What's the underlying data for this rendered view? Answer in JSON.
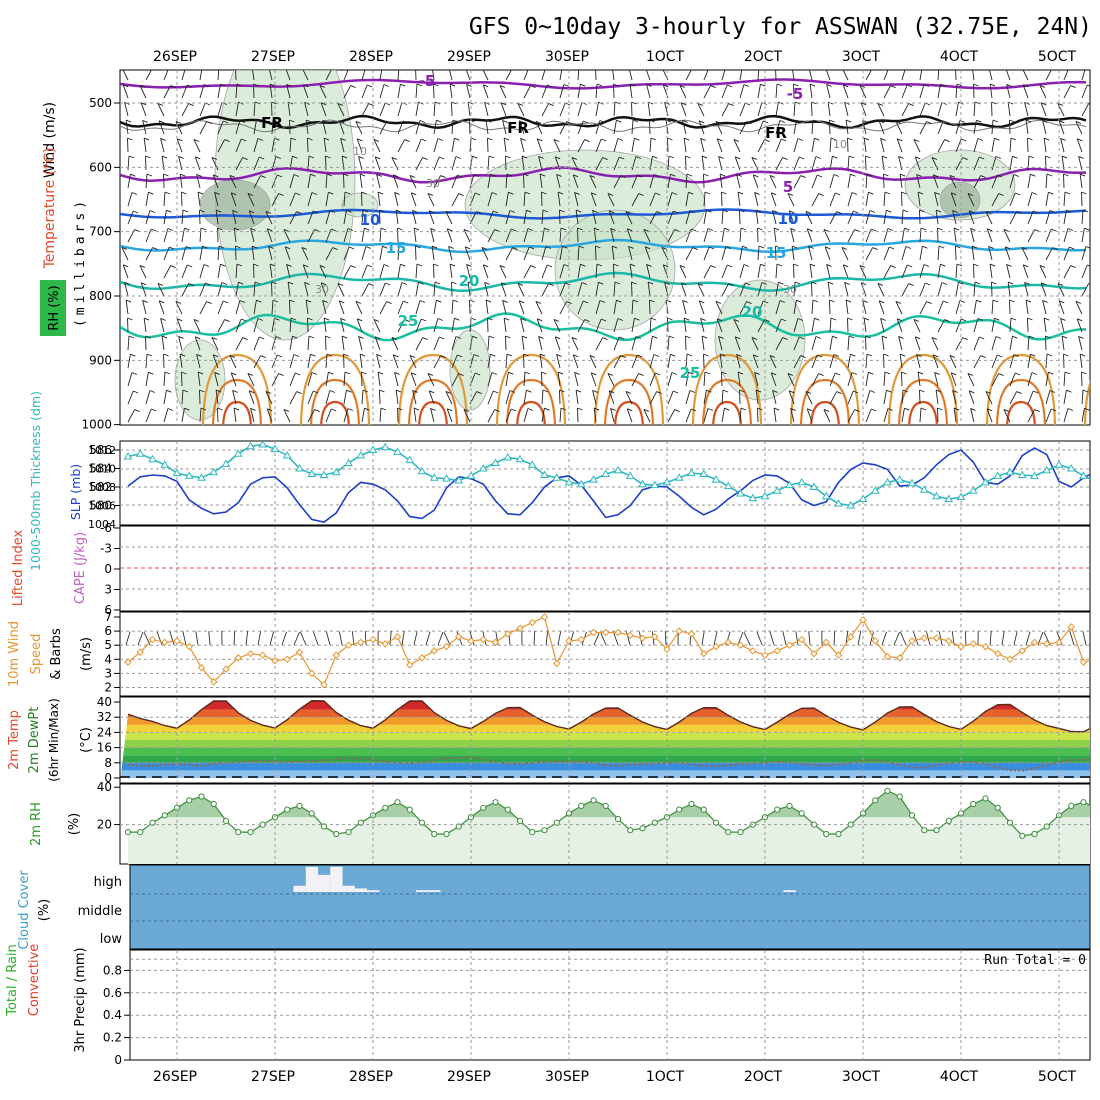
{
  "title": "GFS 0~10day 3-hourly for ASSWAN (32.75E, 24N)",
  "date_ticks": [
    "26SEP",
    "27SEP",
    "28SEP",
    "29SEP",
    "30SEP",
    "1OCT",
    "2OCT",
    "3OCT",
    "4OCT",
    "5OCT"
  ],
  "colors": {
    "temperature": "#7f1fb0",
    "freezing": "#000000",
    "rh_fill": "#c8e2c8",
    "slp": "#1c3fc8",
    "thickness": "#2fb8c0",
    "wind": "#e8952e",
    "rh2m": "#3a8f3a",
    "cloud": "#6aa9d5",
    "grid": "#9a9a9a"
  },
  "panels": {
    "upper_air": {
      "ylabel_wind": "Wind (m/s)",
      "ylabel_temp": "Temperature (°C)",
      "ylabel_rh": "RH (%)",
      "ylabel_units": "(millibars)",
      "pressure_ticks": [
        "500",
        "600",
        "700",
        "800",
        "900",
        "1000"
      ],
      "freezing_label": "FR",
      "rh_labels": [
        "10",
        "30",
        "30",
        "10",
        "30"
      ]
    },
    "slp_thickness": {
      "ylabel_thickness": "1000-500mb Thickness (dm)",
      "ylabel_slp": "SLP (mb)",
      "thickness_ticks": [
        "586",
        "584",
        "582",
        "580"
      ],
      "slp_ticks": [
        "1012",
        "1010",
        "1008",
        "1006",
        "1004"
      ]
    },
    "stability": {
      "ylabel_li": "Lifted Index",
      "ylabel_cape": "CAPE (J/kg)",
      "li_ticks": [
        "-6",
        "-3",
        "0",
        "3",
        "6"
      ]
    },
    "wind10m": {
      "ylabel1": "10m Wind",
      "ylabel2": "Speed",
      "ylabel3": "& Barbs",
      "units": "(m/s)",
      "ticks": [
        "7",
        "6",
        "5",
        "4",
        "3",
        "2"
      ]
    },
    "temp2m": {
      "ylabel1": "2m Temp",
      "ylabel2": "2m DewPt",
      "ylabel3": "(6hr Min/Max)",
      "units": "(°C)",
      "ticks": [
        "40",
        "32",
        "24",
        "16",
        "8",
        "0"
      ]
    },
    "rh2m": {
      "ylabel": "2m RH",
      "units": "(%)",
      "ticks": [
        "40",
        "20"
      ]
    },
    "cloud": {
      "ylabel": "Cloud Cover",
      "units": "(%)",
      "levels": [
        "high",
        "middle",
        "low"
      ]
    },
    "precip": {
      "ylabel1": "Total / Rain",
      "ylabel2": "Convective",
      "ylabel3": "3hr Precip (mm)",
      "ticks": [
        "0.8",
        "0.6",
        "0.4",
        "0.2",
        "0"
      ],
      "run_total": "Run Total = 0"
    }
  },
  "chart_data": [
    {
      "type": "line",
      "name": "slp_thickness",
      "x": [
        0,
        0.125,
        0.25,
        0.375,
        0.5,
        0.625,
        0.75,
        0.875,
        1,
        1.125,
        1.25,
        1.375,
        1.5,
        1.625,
        1.75,
        1.875,
        2,
        2.125,
        2.25,
        2.375,
        2.5,
        2.625,
        2.75,
        2.875,
        3,
        3.125,
        3.25,
        3.375,
        3.5,
        3.625,
        3.75,
        3.875,
        4,
        4.125,
        4.25,
        4.375,
        4.5,
        4.625,
        4.75,
        4.875,
        5,
        5.125,
        5.25,
        5.375,
        5.5,
        5.625,
        5.75,
        5.875,
        6,
        6.125,
        6.25,
        6.375,
        6.5,
        6.625,
        6.75,
        6.875,
        7,
        7.125,
        7.25,
        7.375,
        7.5,
        7.625,
        7.75,
        7.875,
        8,
        8.125,
        8.25,
        8.375,
        8.5,
        8.625,
        8.75,
        8.875,
        9,
        9.125,
        9.25,
        9.375,
        9.5,
        9.625,
        9.75,
        9.875
      ],
      "series": [
        {
          "name": "SLP (mb)",
          "values": [
            1008.1,
            1009.1,
            1009.3,
            1009.2,
            1008.6,
            1006.6,
            1005.7,
            1005.1,
            1005.3,
            1006.3,
            1008.3,
            1009.0,
            1009.1,
            1007.9,
            1006.1,
            1004.5,
            1004.2,
            1005.2,
            1007.4,
            1008.5,
            1008.3,
            1007.7,
            1006.5,
            1004.8,
            1004.6,
            1005.5,
            1007.9,
            1009.1,
            1008.9,
            1008.3,
            1006.5,
            1005.1,
            1005.0,
            1006.3,
            1008.0,
            1009.0,
            1009.2,
            1008.2,
            1006.5,
            1004.7,
            1005.0,
            1006.0,
            1007.7,
            1008.1,
            1008.0,
            1007.0,
            1005.8,
            1005.0,
            1005.6,
            1006.7,
            1007.6,
            1008.7,
            1009.3,
            1009.2,
            1008.4,
            1006.6,
            1006.0,
            1006.4,
            1008.5,
            1009.9,
            1010.6,
            1010.4,
            1009.9,
            1008.1,
            1008.2,
            1009.0,
            1010.4,
            1011.5,
            1012.0,
            1010.7,
            1008.5,
            1008.3,
            1009.2,
            1011.4,
            1012.2,
            1011.5,
            1008.6,
            1008.0,
            1009.0,
            1009.7
          ]
        },
        {
          "name": "1000-500mb Thickness (dm)",
          "values": [
            585.3,
            585.6,
            585.0,
            584.4,
            583.5,
            583.2,
            583.0,
            583.6,
            584.5,
            585.6,
            586.4,
            586.6,
            586.1,
            585.4,
            584.0,
            583.4,
            583.3,
            583.6,
            584.6,
            585.4,
            586.0,
            586.3,
            585.8,
            584.9,
            583.7,
            583.0,
            582.9,
            582.7,
            583.2,
            584.0,
            584.6,
            585.2,
            585.0,
            584.4,
            583.3,
            583.0,
            582.5,
            582.3,
            582.8,
            583.4,
            583.8,
            583.2,
            582.3,
            582.2,
            582.5,
            583.0,
            583.5,
            583.4,
            582.8,
            582.1,
            581.3,
            580.8,
            581.0,
            581.6,
            582.2,
            582.5,
            582.0,
            581.0,
            580.2,
            580.0,
            580.7,
            581.6,
            582.5,
            582.8,
            582.4,
            581.7,
            581.0,
            580.7,
            580.9,
            581.6,
            582.5,
            583.2,
            583.6,
            583.3,
            583.2,
            583.8,
            584.4,
            584.0,
            583.2,
            582.6
          ]
        }
      ]
    },
    {
      "type": "line",
      "name": "wind10m_speed",
      "x": [
        0,
        0.125,
        0.25,
        0.375,
        0.5,
        0.625,
        0.75,
        0.875,
        1,
        1.125,
        1.25,
        1.375,
        1.5,
        1.625,
        1.75,
        1.875,
        2,
        2.125,
        2.25,
        2.375,
        2.5,
        2.625,
        2.75,
        2.875,
        3,
        3.125,
        3.25,
        3.375,
        3.5,
        3.625,
        3.75,
        3.875,
        4,
        4.125,
        4.25,
        4.375,
        4.5,
        4.625,
        4.75,
        4.875,
        5,
        5.125,
        5.25,
        5.375,
        5.5,
        5.625,
        5.75,
        5.875,
        6,
        6.125,
        6.25,
        6.375,
        6.5,
        6.625,
        6.75,
        6.875,
        7,
        7.125,
        7.25,
        7.375,
        7.5,
        7.625,
        7.75,
        7.875,
        8,
        8.125,
        8.25,
        8.375,
        8.5,
        8.625,
        8.75,
        8.875,
        9,
        9.125,
        9.25,
        9.375,
        9.5,
        9.625,
        9.75,
        9.875
      ],
      "values": [
        3.8,
        4.5,
        5.4,
        5.2,
        5.3,
        4.9,
        3.4,
        2.4,
        3.3,
        4.1,
        4.4,
        4.3,
        3.9,
        4.0,
        4.5,
        3.0,
        2.2,
        4.3,
        5.0,
        5.2,
        5.4,
        5.1,
        5.6,
        3.6,
        4.1,
        4.6,
        4.9,
        5.6,
        5.3,
        5.4,
        5.2,
        5.8,
        6.2,
        6.6,
        7.0,
        3.7,
        5.3,
        5.4,
        5.9,
        5.9,
        5.9,
        5.7,
        5.5,
        5.6,
        4.7,
        6.0,
        5.8,
        4.4,
        4.9,
        5.2,
        5.0,
        4.6,
        4.3,
        4.6,
        5.0,
        5.4,
        4.4,
        5.2,
        4.3,
        5.6,
        6.8,
        5.3,
        4.2,
        4.1,
        5.3,
        5.5,
        5.5,
        5.3,
        4.9,
        5.1,
        4.9,
        4.4,
        4.0,
        4.6,
        5.2,
        5.1,
        5.2,
        6.3,
        3.8,
        4.0
      ]
    },
    {
      "type": "area",
      "name": "temp2m",
      "x": [
        0,
        0.125,
        0.25,
        0.375,
        0.5,
        0.625,
        0.75,
        0.875,
        1,
        1.125,
        1.25,
        1.375,
        1.5,
        1.625,
        1.75,
        1.875,
        2,
        2.125,
        2.25,
        2.375,
        2.5,
        2.625,
        2.75,
        2.875,
        3,
        3.125,
        3.25,
        3.375,
        3.5,
        3.625,
        3.75,
        3.875,
        4,
        4.125,
        4.25,
        4.375,
        4.5,
        4.625,
        4.75,
        4.875,
        5,
        5.125,
        5.25,
        5.375,
        5.5,
        5.625,
        5.75,
        5.875,
        6,
        6.125,
        6.25,
        6.375,
        6.5,
        6.625,
        6.75,
        6.875,
        7,
        7.125,
        7.25,
        7.375,
        7.5,
        7.625,
        7.75,
        7.875,
        8,
        8.125,
        8.25,
        8.375,
        8.5,
        8.625,
        8.75,
        8.875,
        9,
        9.125,
        9.25,
        9.375,
        9.5,
        9.625,
        9.75,
        9.875
      ],
      "series": [
        {
          "name": "2m Temp",
          "values": [
            33.6,
            31.3,
            29.8,
            27.6,
            26.2,
            30.5,
            36.0,
            40.5,
            40.5,
            34.3,
            30.3,
            27.8,
            26.3,
            30.7,
            36.2,
            40.7,
            40.6,
            34.5,
            30.4,
            27.6,
            26.2,
            30.6,
            36.0,
            40.5,
            40.6,
            34.4,
            30.3,
            27.5,
            26.0,
            29.8,
            34.0,
            37.0,
            37.1,
            33.1,
            29.6,
            27.1,
            25.8,
            29.4,
            33.7,
            36.8,
            36.9,
            33.0,
            29.5,
            27.0,
            25.6,
            29.5,
            34.0,
            37.0,
            37.0,
            33.0,
            29.5,
            27.0,
            25.5,
            29.4,
            33.6,
            36.7,
            36.8,
            32.8,
            29.3,
            26.8,
            25.3,
            29.4,
            34.2,
            37.4,
            37.5,
            33.4,
            29.7,
            27.1,
            25.6,
            29.9,
            35.0,
            38.6,
            38.7,
            34.5,
            30.5,
            27.6,
            26.1,
            24.5,
            24.3,
            27.5
          ]
        },
        {
          "name": "2m DewPt",
          "values": [
            7.0,
            6.5,
            6.3,
            7.0,
            7.5,
            6.9,
            6.3,
            7.6,
            8.0,
            8.5,
            8.8,
            9.0,
            8.8,
            8.5,
            8.6,
            8.9,
            9.3,
            9.9,
            10.6,
            10.3,
            9.6,
            8.6,
            8.0,
            7.8,
            8.0,
            9.5,
            10.4,
            10.6,
            10.7,
            9.9,
            8.4,
            7.6,
            7.5,
            8.0,
            8.6,
            8.7,
            8.8,
            8.7,
            8.0,
            6.7,
            6.5,
            7.0,
            7.2,
            7.6,
            8.1,
            8.1,
            7.2,
            6.3,
            6.1,
            6.6,
            7.3,
            7.6,
            8.0,
            8.6,
            8.4,
            7.5,
            6.7,
            6.5,
            7.0,
            8.0,
            9.3,
            9.4,
            8.4,
            6.9,
            5.4,
            5.6,
            6.8,
            7.8,
            8.4,
            8.4,
            7.4,
            5.5,
            4.1,
            3.9,
            5.0,
            6.8,
            8.5,
            9.5,
            9.8,
            8.9
          ]
        }
      ],
      "ylim": [
        0,
        42
      ]
    },
    {
      "type": "area",
      "name": "rh2m",
      "x": [
        0,
        0.125,
        0.25,
        0.375,
        0.5,
        0.625,
        0.75,
        0.875,
        1,
        1.125,
        1.25,
        1.375,
        1.5,
        1.625,
        1.75,
        1.875,
        2,
        2.125,
        2.25,
        2.375,
        2.5,
        2.625,
        2.75,
        2.875,
        3,
        3.125,
        3.25,
        3.375,
        3.5,
        3.625,
        3.75,
        3.875,
        4,
        4.125,
        4.25,
        4.375,
        4.5,
        4.625,
        4.75,
        4.875,
        5,
        5.125,
        5.25,
        5.375,
        5.5,
        5.625,
        5.75,
        5.875,
        6,
        6.125,
        6.25,
        6.375,
        6.5,
        6.625,
        6.75,
        6.875,
        7,
        7.125,
        7.25,
        7.375,
        7.5,
        7.625,
        7.75,
        7.875,
        8,
        8.125,
        8.25,
        8.375,
        8.5,
        8.625,
        8.75,
        8.875,
        9,
        9.125,
        9.25,
        9.375,
        9.5,
        9.625,
        9.75,
        9.875
      ],
      "values": [
        16,
        16,
        21,
        25,
        29,
        33,
        35,
        31,
        22,
        16,
        16,
        20,
        24,
        28,
        30,
        26,
        19,
        15,
        16,
        21,
        25,
        29,
        32,
        28,
        21,
        15,
        15,
        19,
        24,
        29,
        32,
        28,
        22,
        16,
        17,
        21,
        26,
        30,
        33,
        30,
        23,
        17,
        18,
        21,
        24,
        28,
        31,
        28,
        21,
        16,
        16,
        20,
        24,
        28,
        30,
        26,
        20,
        15,
        15,
        20,
        26,
        33,
        38,
        35,
        25,
        17,
        17,
        22,
        26,
        31,
        34,
        29,
        21,
        14,
        15,
        19,
        25,
        30,
        32,
        29
      ]
    },
    {
      "type": "bar",
      "name": "cloud_high",
      "x": [
        0,
        0.125,
        0.25,
        0.375,
        0.5,
        0.625,
        0.75,
        0.875,
        1,
        1.125,
        1.25,
        1.375,
        1.5,
        1.625,
        1.75,
        1.875,
        2,
        2.125,
        2.25,
        2.375,
        2.5,
        2.625,
        2.75,
        2.875,
        3,
        3.125,
        3.25,
        3.375,
        3.5,
        3.625,
        3.75,
        3.875,
        4,
        4.125,
        4.25,
        4.375,
        4.5,
        4.625,
        4.75,
        4.875,
        5,
        5.125,
        5.25,
        5.375,
        5.5,
        5.625,
        5.75,
        5.875,
        6,
        6.125,
        6.25,
        6.375,
        6.5,
        6.625,
        6.75,
        6.875,
        7,
        7.125,
        7.25,
        7.375,
        7.5,
        7.625,
        7.75,
        7.875,
        8,
        8.125,
        8.25,
        8.375,
        8.5,
        8.625,
        8.75,
        8.875,
        9,
        9.125,
        9.25,
        9.375,
        9.5,
        9.625,
        9.75,
        9.875
      ],
      "values": [
        0,
        0,
        0,
        0,
        0,
        0,
        0,
        0,
        0,
        0,
        0,
        0,
        0,
        0,
        7,
        28,
        19,
        28,
        7,
        4,
        2,
        0,
        0,
        0,
        2,
        2,
        0,
        0,
        0,
        0,
        0,
        0,
        0,
        0,
        0,
        0,
        0,
        0,
        0,
        0,
        0,
        0,
        0,
        0,
        0,
        0,
        0,
        0,
        0,
        0,
        0,
        0,
        0,
        0,
        2,
        0,
        0,
        0,
        0,
        0,
        0,
        0,
        0,
        0,
        0,
        0,
        0,
        0,
        0,
        0,
        0,
        0,
        0,
        0,
        0,
        0,
        0,
        0,
        0,
        0
      ],
      "ylim": [
        0,
        100
      ]
    },
    {
      "type": "bar",
      "name": "precip_3hr",
      "values": [
        0,
        0,
        0,
        0,
        0,
        0,
        0,
        0,
        0,
        0,
        0,
        0,
        0,
        0,
        0,
        0,
        0,
        0,
        0,
        0,
        0,
        0,
        0,
        0,
        0,
        0,
        0,
        0,
        0,
        0,
        0,
        0,
        0,
        0,
        0,
        0,
        0,
        0,
        0,
        0,
        0,
        0,
        0,
        0,
        0,
        0,
        0,
        0,
        0,
        0,
        0,
        0,
        0,
        0,
        0,
        0,
        0,
        0,
        0,
        0,
        0,
        0,
        0,
        0,
        0,
        0,
        0,
        0,
        0,
        0,
        0,
        0,
        0,
        0,
        0,
        0,
        0,
        0,
        0,
        0
      ],
      "ylim": [
        0,
        1
      ]
    }
  ]
}
